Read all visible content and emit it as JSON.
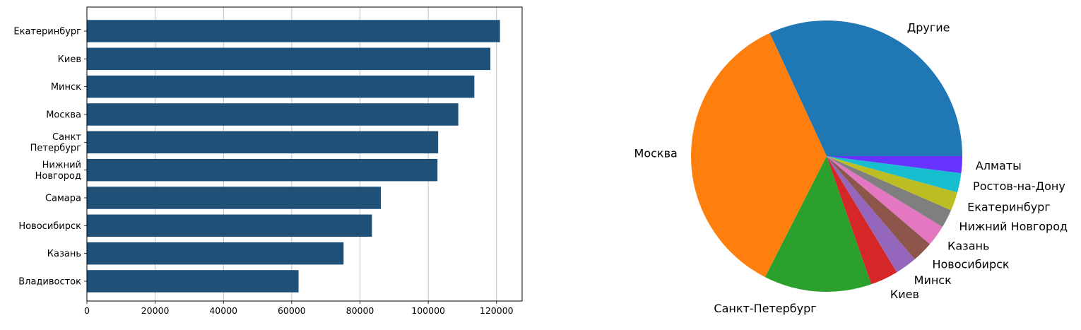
{
  "chart_data": [
    {
      "type": "bar",
      "orientation": "horizontal",
      "categories": [
        "Екатеринбург",
        "Киев",
        "Минск",
        "Москва",
        "Санкт\nПетербург",
        "Нижний\nНовгород",
        "Самара",
        "Новосибирск",
        "Казань",
        "Владивосток"
      ],
      "values": [
        121000,
        118200,
        113500,
        108800,
        102900,
        102700,
        86100,
        83500,
        75200,
        62000
      ],
      "xlim": [
        0,
        127500
      ],
      "xticks": [
        0,
        20000,
        40000,
        60000,
        80000,
        100000,
        120000
      ],
      "xtick_labels": [
        "0",
        "20000",
        "40000",
        "60000",
        "80000",
        "100000",
        "120000"
      ],
      "grid": "x",
      "bar_color": "#1f5078"
    },
    {
      "type": "pie",
      "labels": [
        "Другие",
        "Москва",
        "Санкт-Петербург",
        "Киев",
        "Минск",
        "Новосибирск",
        "Казань",
        "Нижний Новгород",
        "Екатеринбург",
        "Ростов-на-Дону",
        "Алматы"
      ],
      "values": [
        31.8,
        35.5,
        12.8,
        3.3,
        2.6,
        2.5,
        2.5,
        2.2,
        2.2,
        2.3,
        2.0
      ],
      "colors": [
        "#1f77b4",
        "#ff7f0e",
        "#2ca02c",
        "#d62728",
        "#9467bd",
        "#8c564b",
        "#e377c2",
        "#7f7f7f",
        "#bcbd22",
        "#17becf",
        "#6633ff"
      ]
    }
  ]
}
